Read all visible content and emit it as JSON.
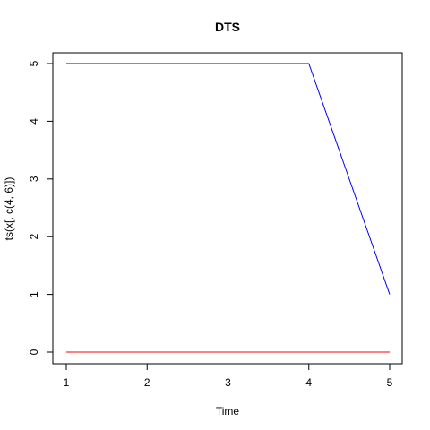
{
  "chart_data": {
    "type": "line",
    "title": "DTS",
    "xlabel": "Time",
    "ylabel": "ts(x[, c(4, 6)])",
    "x": [
      1,
      2,
      3,
      4,
      5
    ],
    "xlim": [
      1,
      5
    ],
    "ylim": [
      0,
      5
    ],
    "x_ticks": [
      "1",
      "2",
      "3",
      "4",
      "5"
    ],
    "y_ticks": [
      "0",
      "1",
      "2",
      "3",
      "4",
      "5"
    ],
    "grid": false,
    "series": [
      {
        "color": "#0000ff",
        "values": [
          5,
          5,
          5,
          5,
          1
        ]
      },
      {
        "color": "#ff0000",
        "values": [
          0,
          0,
          0,
          0,
          0
        ]
      }
    ]
  }
}
